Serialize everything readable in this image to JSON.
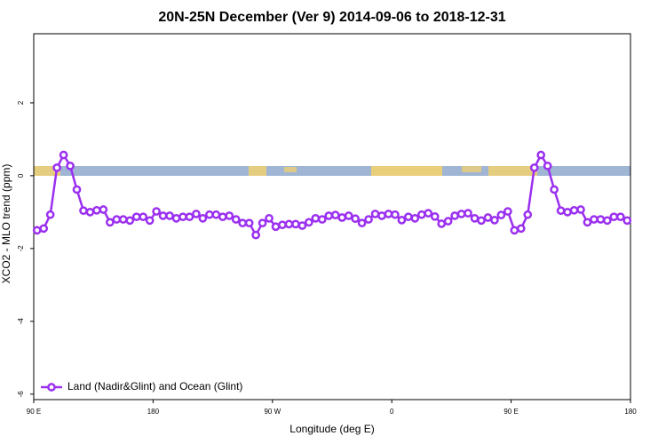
{
  "chart_data": {
    "type": "line",
    "title": "20N-25N December (Ver 9)   2014-09-06 to 2018-12-31",
    "xlabel": "Longitude (deg E)",
    "ylabel": "XCO2 - MLO trend (ppm)",
    "x": [
      92.5,
      97.5,
      102.5,
      107.5,
      112.5,
      117.5,
      122.5,
      127.5,
      132.5,
      137.5,
      142.5,
      147.5,
      152.5,
      157.5,
      162.5,
      167.5,
      172.5,
      177.5,
      182.5,
      187.5,
      192.5,
      197.5,
      202.5,
      207.5,
      212.5,
      217.5,
      222.5,
      227.5,
      232.5,
      237.5,
      242.5,
      247.5,
      252.5,
      257.5,
      262.5,
      267.5,
      272.5,
      277.5,
      282.5,
      287.5,
      292.5,
      297.5,
      302.5,
      307.5,
      312.5,
      317.5,
      322.5,
      327.5,
      332.5,
      337.5,
      342.5,
      347.5,
      352.5,
      357.5,
      362.5,
      367.5,
      372.5,
      377.5,
      382.5,
      387.5,
      392.5,
      397.5,
      402.5,
      407.5,
      412.5,
      417.5,
      422.5,
      427.5,
      432.5,
      437.5,
      442.5,
      447.5,
      452.5,
      457.5,
      462.5,
      467.5,
      472.5,
      477.5,
      482.5,
      487.5,
      492.5,
      497.5,
      502.5,
      507.5,
      512.5,
      517.5,
      522.5,
      527.5,
      532.5,
      537.5
    ],
    "series": [
      {
        "name": "Land (Nadir&Glint) and Ocean (Glint)",
        "color": "#9b30f0",
        "values": [
          -1.5,
          -1.45,
          -1.07,
          0.22,
          0.57,
          0.27,
          -0.38,
          -0.96,
          -1.0,
          -0.95,
          -0.93,
          -1.28,
          -1.2,
          -1.2,
          -1.23,
          -1.13,
          -1.13,
          -1.23,
          -0.98,
          -1.1,
          -1.1,
          -1.17,
          -1.13,
          -1.13,
          -1.05,
          -1.17,
          -1.07,
          -1.07,
          -1.13,
          -1.1,
          -1.2,
          -1.3,
          -1.3,
          -1.63,
          -1.3,
          -1.17,
          -1.4,
          -1.35,
          -1.33,
          -1.33,
          -1.37,
          -1.28,
          -1.17,
          -1.2,
          -1.1,
          -1.08,
          -1.15,
          -1.1,
          -1.18,
          -1.3,
          -1.2,
          -1.05,
          -1.1,
          -1.05,
          -1.07,
          -1.22,
          -1.13,
          -1.17,
          -1.07,
          -1.03,
          -1.12,
          -1.32,
          -1.25,
          -1.1,
          -1.05,
          -1.03,
          -1.17,
          -1.23,
          -1.15,
          -1.22,
          -1.08,
          -0.98,
          -1.5,
          -1.45,
          -1.07,
          0.22,
          0.57,
          0.27,
          -0.38,
          -0.96,
          -1.0,
          -0.95,
          -0.93,
          -1.28,
          -1.2,
          -1.2,
          -1.23,
          -1.13,
          -1.13,
          -1.23
        ]
      }
    ],
    "xlim": [
      90,
      540
    ],
    "xticks": [
      {
        "value": 90,
        "label": "90 E"
      },
      180,
      {
        "value": 270,
        "label": "90 W"
      },
      {
        "value": 360,
        "label": "0"
      },
      {
        "value": 450,
        "label": "90 E"
      },
      {
        "value": 540,
        "label": "180"
      }
    ],
    "ylim": [
      -6.15,
      3.9
    ],
    "yticks": [
      -6,
      -4,
      -2,
      0,
      2
    ],
    "legend": "bottom-left"
  }
}
